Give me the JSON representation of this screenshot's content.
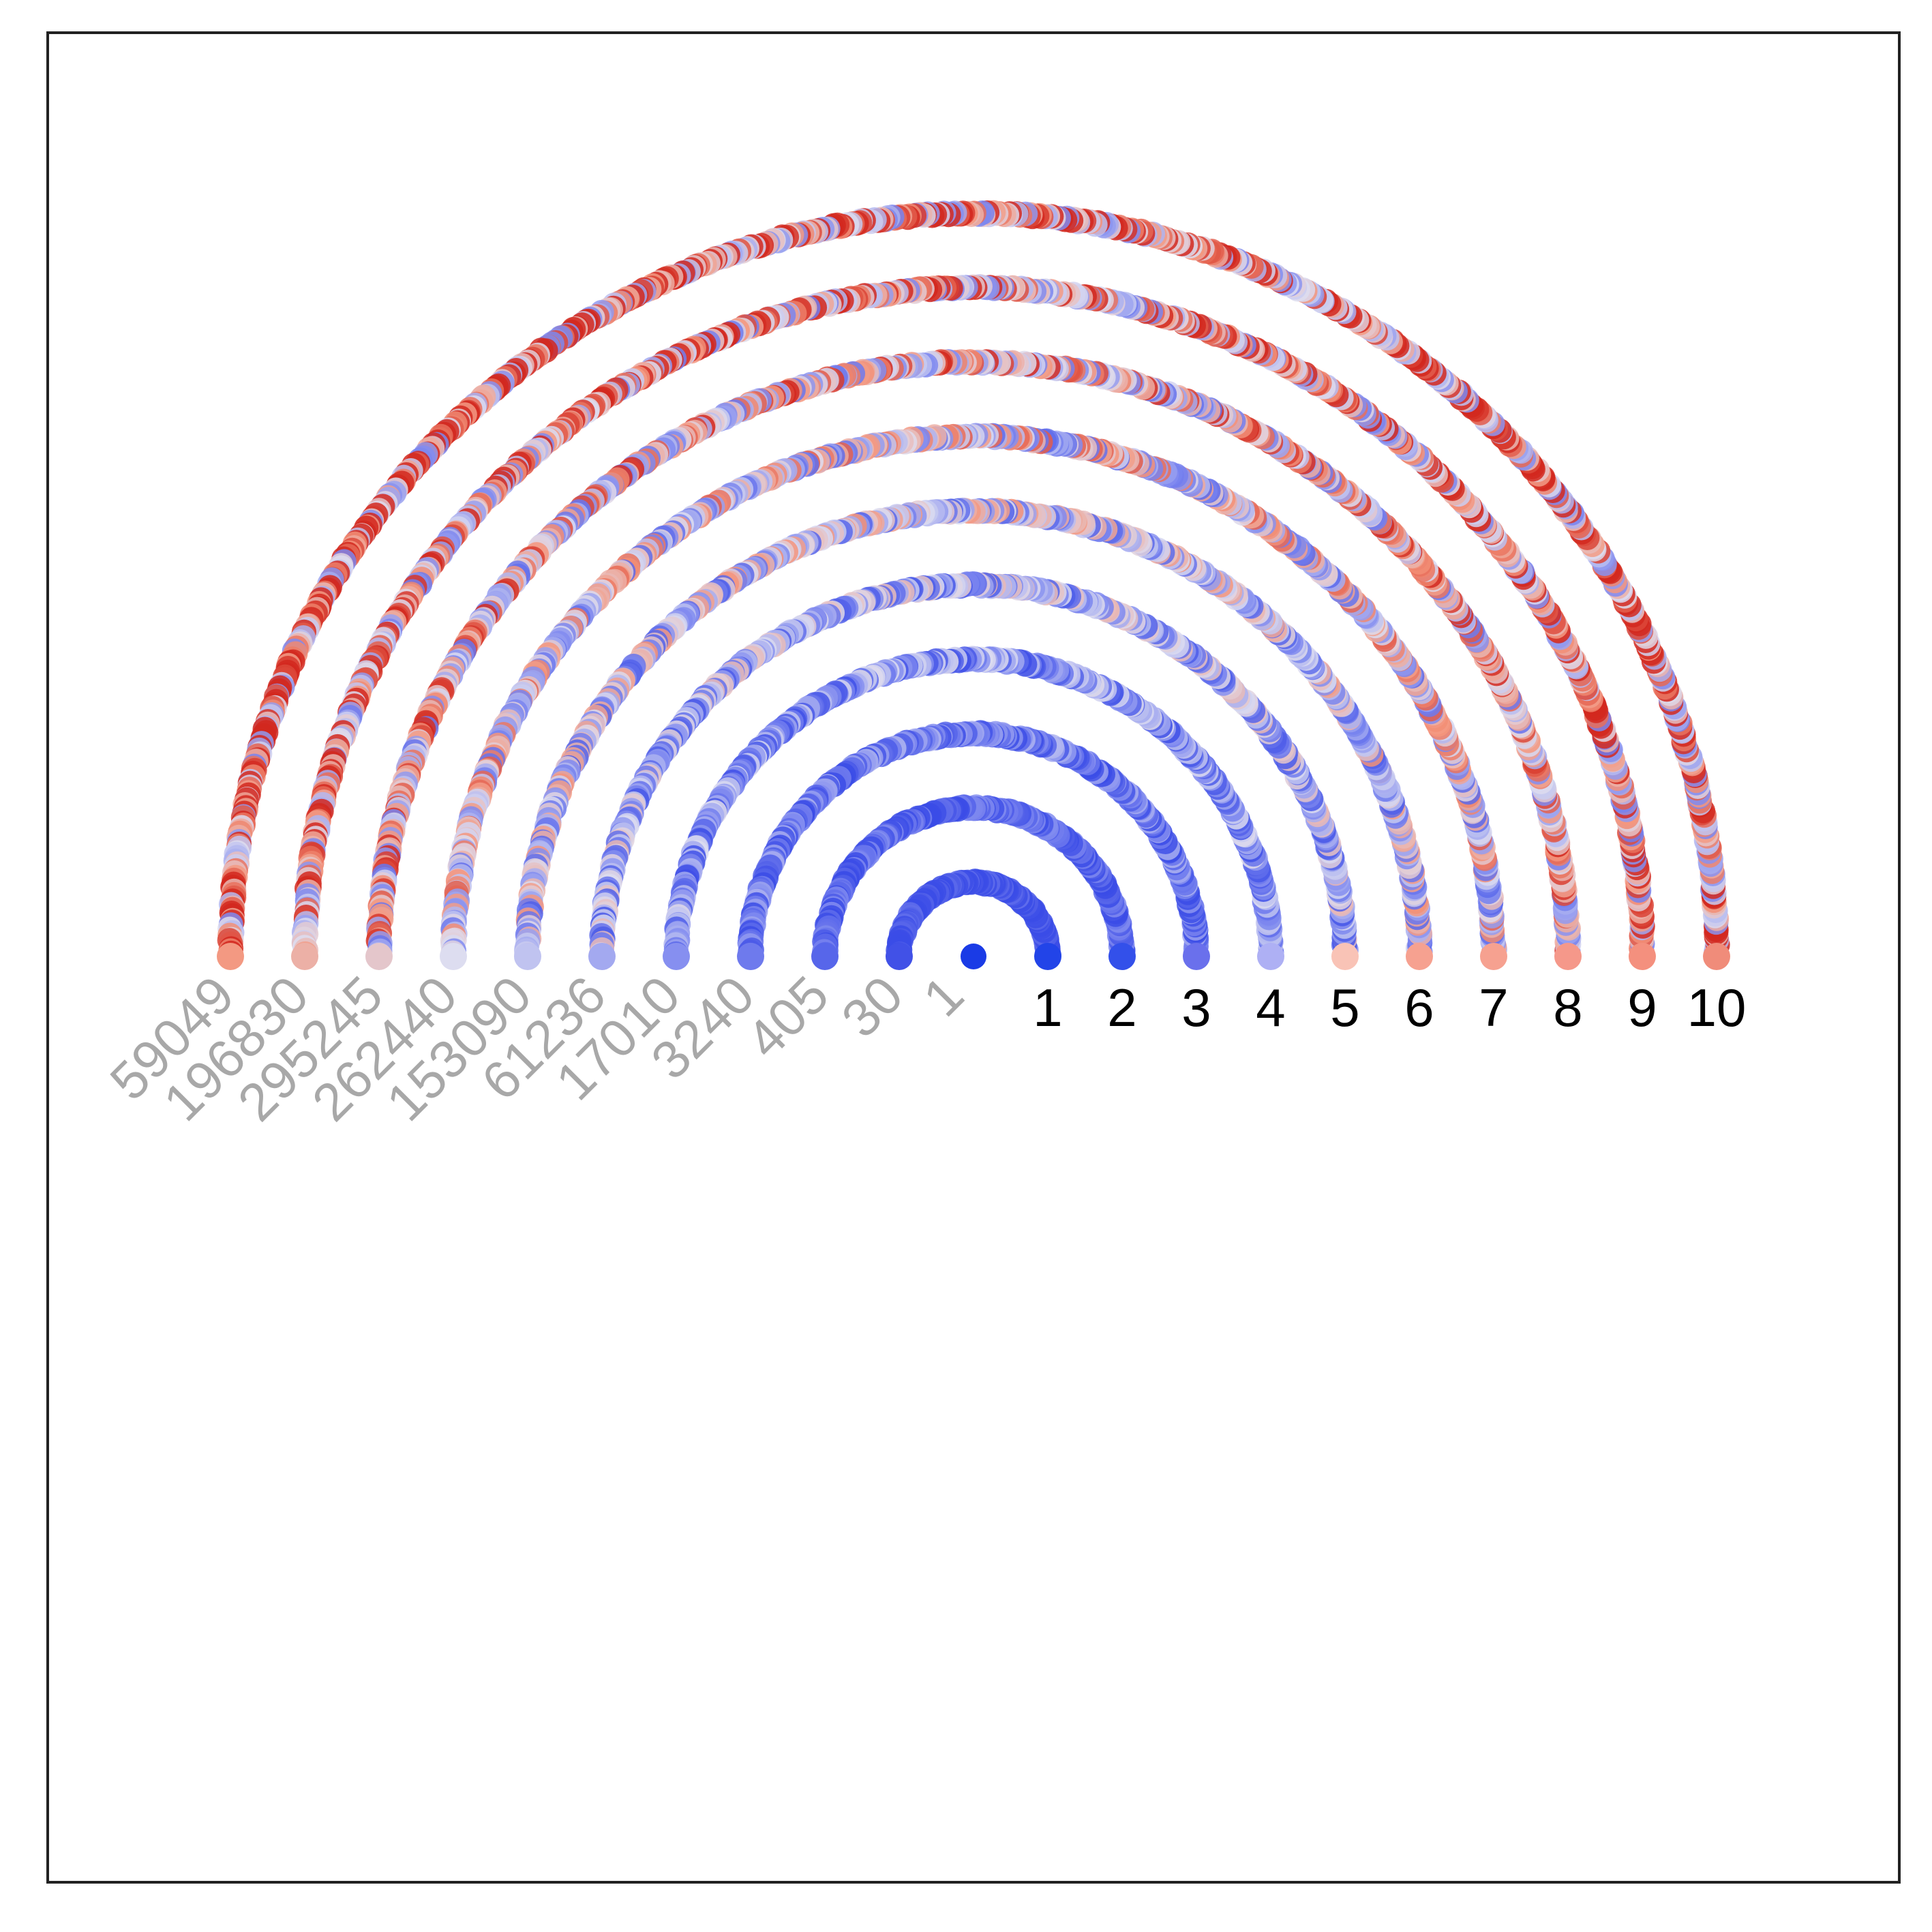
{
  "chart_data": {
    "type": "scatter",
    "title": "",
    "xlabel": "",
    "ylabel": "",
    "grid": false,
    "legend": "none",
    "colormap": "coolwarm",
    "rings": [
      {
        "label": "1",
        "count": "30",
        "mean_color_value": 0.02
      },
      {
        "label": "2",
        "count": "405",
        "mean_color_value": 0.1
      },
      {
        "label": "3",
        "count": "3240",
        "mean_color_value": 0.18
      },
      {
        "label": "4",
        "count": "17010",
        "mean_color_value": 0.26
      },
      {
        "label": "5",
        "count": "61236",
        "mean_color_value": 0.34
      },
      {
        "label": "6",
        "count": "153090",
        "mean_color_value": 0.42
      },
      {
        "label": "7",
        "count": "262440",
        "mean_color_value": 0.5
      },
      {
        "label": "8",
        "count": "295245",
        "mean_color_value": 0.58
      },
      {
        "label": "9",
        "count": "196830",
        "mean_color_value": 0.66
      },
      {
        "label": "10",
        "count": "59049",
        "mean_color_value": 0.74
      }
    ],
    "center": {
      "count": "1",
      "color": "#1a3be6"
    },
    "endpoint_colors": [
      "#2244e8",
      "#3350ea",
      "#6a70ec",
      "#aeb0f4",
      "#f9c3b6",
      "#f6a190",
      "#f6a190",
      "#f5988a",
      "#f4907e",
      "#f08c7a"
    ],
    "colors": {
      "blue": "#3b4cc0",
      "white": "#dddddd",
      "red": "#b40426",
      "frame": "#222222",
      "count_text": "#a8a8a8"
    }
  }
}
